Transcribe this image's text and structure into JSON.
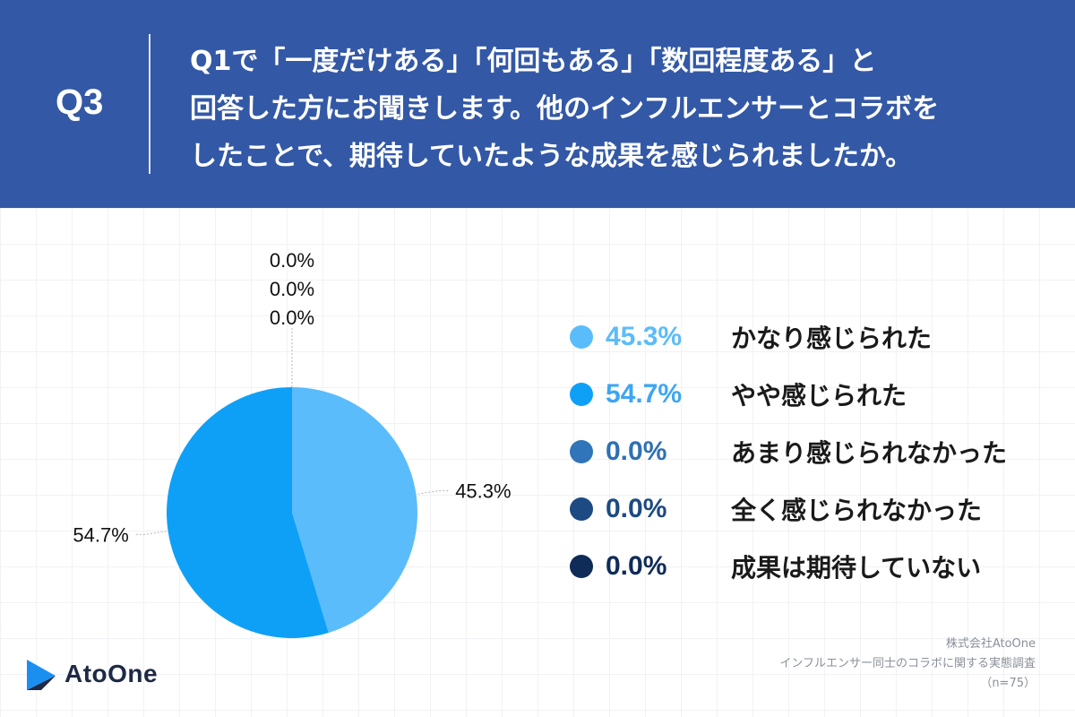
{
  "header": {
    "qnum": "Q3",
    "question_lines": [
      "Q1で「一度だけある」「何回もある」「数回程度ある」と",
      "回答した方にお聞きします。他のインフルエンサーとコラボを",
      "したことで、期待していたような成果を感じられましたか。"
    ]
  },
  "chart_data": {
    "type": "pie",
    "slices": [
      {
        "label": "かなり感じられた",
        "value": 45.3,
        "display": "45.3%",
        "color": "#5bbcfb"
      },
      {
        "label": "やや感じられた",
        "value": 54.7,
        "display": "54.7%",
        "color": "#0ea0f7"
      },
      {
        "label": "あまり感じられなかった",
        "value": 0.0,
        "display": "0.0%",
        "color": "#3074b9"
      },
      {
        "label": "全く感じられなかった",
        "value": 0.0,
        "display": "0.0%",
        "color": "#1d4a82"
      },
      {
        "label": "成果は期待していない",
        "value": 0.0,
        "display": "0.0%",
        "color": "#0f2b57"
      }
    ],
    "legend_position": "right",
    "start_angle_deg": 0,
    "direction": "clockwise"
  },
  "legend_text_colors": [
    "#5bbcfb",
    "#3ea6f3",
    "#2f70b3",
    "#1d4a82",
    "#0f2b57"
  ],
  "footer": {
    "source_lines": [
      "株式会社AtoOne",
      "インフルエンサー同士のコラボに関する実態調査",
      "（n=75）"
    ],
    "logo_text": "AtoOne"
  }
}
